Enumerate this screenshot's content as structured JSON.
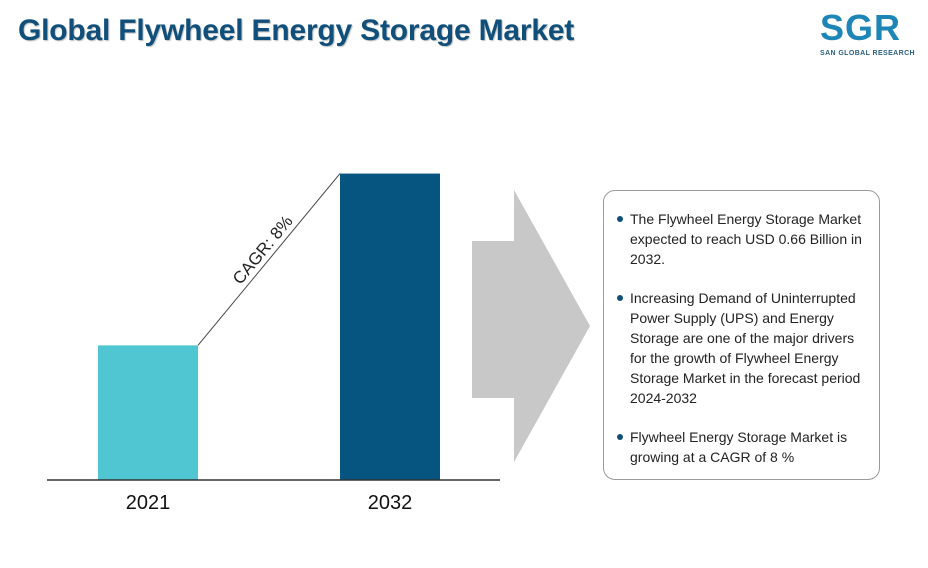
{
  "header": {
    "title": "Global Flywheel Energy Storage Market"
  },
  "logo": {
    "letters": "SGR",
    "subtitle": "SAN GLOBAL RESEARCH"
  },
  "chart_data": {
    "type": "bar",
    "categories": [
      "2021",
      "2032"
    ],
    "values": [
      0.29,
      0.66
    ],
    "ylim": [
      0,
      0.7
    ],
    "colors": [
      "#4fc6d1",
      "#055580"
    ],
    "annotation": "CAGR: 8%",
    "grid": false
  },
  "info": {
    "bullets": [
      "The Flywheel Energy Storage Market expected to reach USD 0.66 Billion in 2032.",
      "Increasing Demand of Uninterrupted Power Supply (UPS) and Energy Storage are one of the major drivers for the growth of Flywheel Energy Storage Market in the forecast period 2024-2032",
      "Flywheel Energy Storage Market is growing at a CAGR of 8 %"
    ]
  },
  "colors": {
    "title": "#0f4f7a",
    "arrow": "#c8c8c8",
    "logo": "#1d86b7"
  }
}
